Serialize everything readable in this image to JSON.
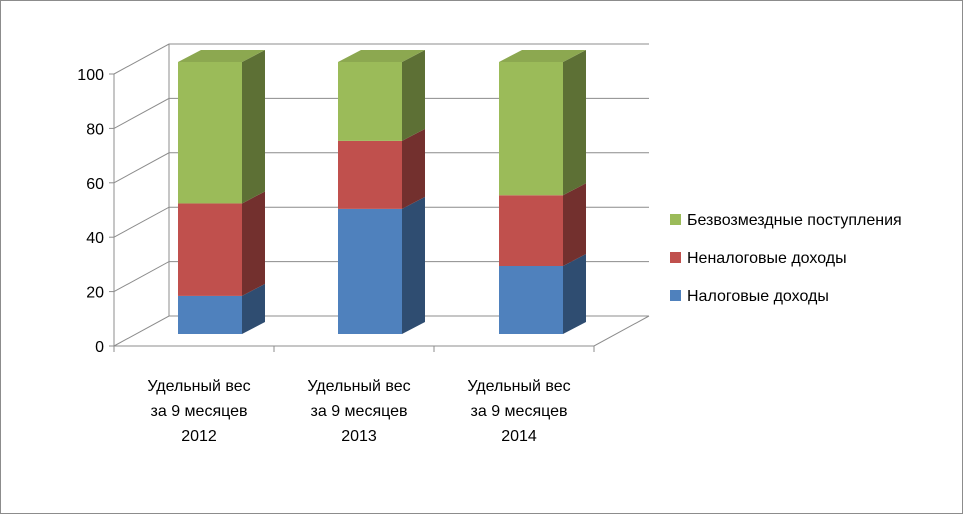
{
  "chart_data": {
    "type": "bar",
    "stacked": true,
    "three_d": true,
    "categories": [
      [
        "Удельный вес",
        "за 9 месяцев",
        "2012"
      ],
      [
        "Удельный вес",
        "за 9 месяцев",
        "2013"
      ],
      [
        "Удельный вес",
        "за 9 месяцев",
        "2014"
      ]
    ],
    "series": [
      {
        "name": "Налоговые доходы",
        "values": [
          14,
          46,
          25
        ],
        "color": "#4f81bd"
      },
      {
        "name": "Неналоговые доходы",
        "values": [
          34,
          25,
          26
        ],
        "color": "#c0504d"
      },
      {
        "name": "Безвозмездные поступления",
        "values": [
          52,
          29,
          49
        ],
        "color": "#9bbb59"
      }
    ],
    "yticks": [
      "0",
      "20",
      "40",
      "60",
      "80",
      "100"
    ],
    "ylim": [
      0,
      100
    ],
    "grid": true,
    "legend_position": "right"
  }
}
